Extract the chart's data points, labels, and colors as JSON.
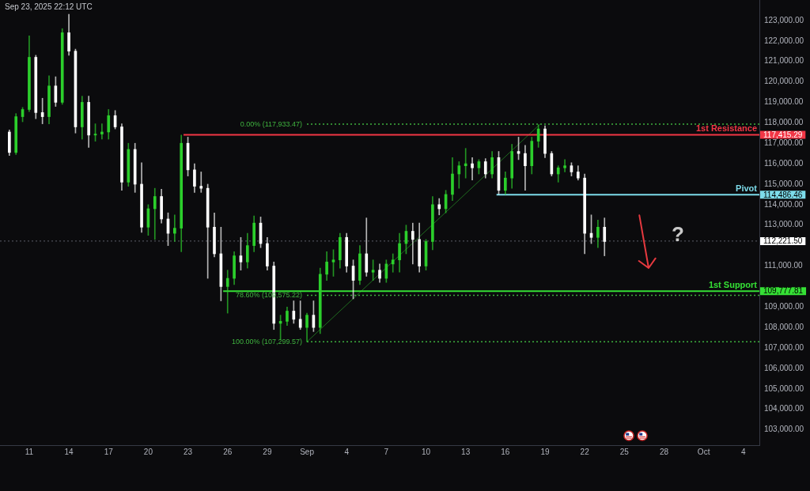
{
  "chart_data": {
    "type": "candlestick",
    "annotations": [
      "Sep 23, 2025 22:12 UTC",
      "?"
    ],
    "x": [
      "2025-08-09T12:00",
      "2025-08-10T00:00",
      "2025-08-10T12:00",
      "2025-08-11T00:00",
      "2025-08-11T12:00",
      "2025-08-12T00:00",
      "2025-08-12T12:00",
      "2025-08-13T00:00",
      "2025-08-13T12:00",
      "2025-08-14T00:00",
      "2025-08-14T12:00",
      "2025-08-15T00:00",
      "2025-08-15T12:00",
      "2025-08-16T00:00",
      "2025-08-16T12:00",
      "2025-08-17T00:00",
      "2025-08-17T12:00",
      "2025-08-18T00:00",
      "2025-08-18T12:00",
      "2025-08-19T00:00",
      "2025-08-19T12:00",
      "2025-08-20T00:00",
      "2025-08-20T12:00",
      "2025-08-21T00:00",
      "2025-08-21T12:00",
      "2025-08-22T00:00",
      "2025-08-22T12:00",
      "2025-08-23T00:00",
      "2025-08-23T12:00",
      "2025-08-24T00:00",
      "2025-08-24T12:00",
      "2025-08-25T00:00",
      "2025-08-25T12:00",
      "2025-08-26T00:00",
      "2025-08-26T12:00",
      "2025-08-27T00:00",
      "2025-08-27T12:00",
      "2025-08-28T00:00",
      "2025-08-28T12:00",
      "2025-08-29T00:00",
      "2025-08-29T12:00",
      "2025-08-30T00:00",
      "2025-08-30T12:00",
      "2025-08-31T00:00",
      "2025-08-31T12:00",
      "2025-09-01T00:00",
      "2025-09-01T12:00",
      "2025-09-02T00:00",
      "2025-09-02T12:00",
      "2025-09-03T00:00",
      "2025-09-03T12:00",
      "2025-09-04T00:00",
      "2025-09-04T12:00",
      "2025-09-05T00:00",
      "2025-09-05T12:00",
      "2025-09-06T00:00",
      "2025-09-06T12:00",
      "2025-09-07T00:00",
      "2025-09-07T12:00",
      "2025-09-08T00:00",
      "2025-09-08T12:00",
      "2025-09-09T00:00",
      "2025-09-09T12:00",
      "2025-09-10T00:00",
      "2025-09-10T12:00",
      "2025-09-11T00:00",
      "2025-09-11T12:00",
      "2025-09-12T00:00",
      "2025-09-12T12:00",
      "2025-09-13T00:00",
      "2025-09-13T12:00",
      "2025-09-14T00:00",
      "2025-09-14T12:00",
      "2025-09-15T00:00",
      "2025-09-15T12:00",
      "2025-09-16T00:00",
      "2025-09-16T12:00",
      "2025-09-17T00:00",
      "2025-09-17T12:00",
      "2025-09-18T00:00",
      "2025-09-18T12:00",
      "2025-09-19T00:00",
      "2025-09-19T12:00",
      "2025-09-20T00:00",
      "2025-09-20T12:00",
      "2025-09-21T00:00",
      "2025-09-21T12:00",
      "2025-09-22T00:00",
      "2025-09-22T12:00",
      "2025-09-23T00:00",
      "2025-09-23T12:00"
    ],
    "ohlc": [
      [
        117550,
        117650,
        116400,
        116550
      ],
      [
        116550,
        118450,
        116450,
        118300
      ],
      [
        118300,
        118750,
        118050,
        118650
      ],
      [
        118650,
        122250,
        118550,
        121200
      ],
      [
        121200,
        121300,
        118200,
        118500
      ],
      [
        118500,
        119200,
        117950,
        118300
      ],
      [
        118300,
        120300,
        117950,
        119800
      ],
      [
        119800,
        120250,
        118800,
        119000
      ],
      [
        119000,
        122600,
        118900,
        122400
      ],
      [
        122400,
        123300,
        121300,
        121500
      ],
      [
        121500,
        121600,
        117500,
        117800
      ],
      [
        117800,
        119300,
        117200,
        119000
      ],
      [
        119000,
        119300,
        116800,
        117400
      ],
      [
        117400,
        117950,
        117100,
        117450
      ],
      [
        117450,
        117950,
        117200,
        117550
      ],
      [
        117550,
        118650,
        117200,
        118350
      ],
      [
        118350,
        118600,
        117700,
        117800
      ],
      [
        117800,
        117950,
        114700,
        115100
      ],
      [
        115100,
        117000,
        114900,
        116700
      ],
      [
        116700,
        117000,
        114600,
        115000
      ],
      [
        115000,
        116050,
        112650,
        112900
      ],
      [
        112900,
        114000,
        112500,
        113800
      ],
      [
        113800,
        114800,
        112300,
        114400
      ],
      [
        114400,
        114750,
        113100,
        113300
      ],
      [
        113300,
        113600,
        112000,
        112600
      ],
      [
        112600,
        113500,
        112200,
        112850
      ],
      [
        112850,
        117400,
        111700,
        117000
      ],
      [
        117000,
        117300,
        115400,
        115700
      ],
      [
        115700,
        116000,
        114600,
        114900
      ],
      [
        114900,
        115600,
        114600,
        114800
      ],
      [
        114800,
        115000,
        110400,
        112900
      ],
      [
        112900,
        113600,
        111450,
        111600
      ],
      [
        111600,
        112900,
        109300,
        110000
      ],
      [
        110000,
        110800,
        108700,
        110400
      ],
      [
        110400,
        111700,
        110100,
        111500
      ],
      [
        111500,
        112400,
        110800,
        111200
      ],
      [
        111200,
        112600,
        110900,
        112000
      ],
      [
        112000,
        113450,
        111700,
        113100
      ],
      [
        113100,
        113400,
        111900,
        112100
      ],
      [
        112100,
        112400,
        110800,
        111000
      ],
      [
        111000,
        111200,
        107900,
        108200
      ],
      [
        108200,
        108600,
        107400,
        108300
      ],
      [
        108300,
        109000,
        108100,
        108800
      ],
      [
        108800,
        109300,
        108200,
        108400
      ],
      [
        108400,
        109300,
        107900,
        108000
      ],
      [
        108000,
        108700,
        107300,
        108600
      ],
      [
        108600,
        109300,
        107800,
        108000
      ],
      [
        108000,
        110900,
        107700,
        110600
      ],
      [
        110600,
        111700,
        110300,
        111200
      ],
      [
        111200,
        111800,
        110500,
        111300
      ],
      [
        111300,
        112600,
        110900,
        112400
      ],
      [
        112400,
        112600,
        110700,
        111000
      ],
      [
        111000,
        111300,
        109400,
        110300
      ],
      [
        110300,
        112000,
        110100,
        111600
      ],
      [
        111600,
        113350,
        110500,
        110700
      ],
      [
        110700,
        111300,
        110300,
        110800
      ],
      [
        110800,
        111100,
        110200,
        110400
      ],
      [
        110400,
        111300,
        110200,
        111100
      ],
      [
        111100,
        111600,
        110700,
        111300
      ],
      [
        111300,
        112600,
        110700,
        112100
      ],
      [
        112100,
        113000,
        111600,
        112700
      ],
      [
        112700,
        113100,
        111100,
        112300
      ],
      [
        112300,
        113100,
        110700,
        111000
      ],
      [
        111000,
        112300,
        110800,
        112200
      ],
      [
        112200,
        114400,
        111800,
        114000
      ],
      [
        114000,
        114300,
        113500,
        113800
      ],
      [
        113800,
        114700,
        113600,
        114500
      ],
      [
        114500,
        116300,
        114200,
        115500
      ],
      [
        115500,
        116100,
        114800,
        115900
      ],
      [
        115900,
        116750,
        115300,
        116000
      ],
      [
        116000,
        116300,
        115200,
        115800
      ],
      [
        115800,
        116200,
        115500,
        116100
      ],
      [
        116100,
        116250,
        115300,
        115500
      ],
      [
        115500,
        116600,
        115300,
        116300
      ],
      [
        116300,
        116600,
        114500,
        114700
      ],
      [
        114700,
        115600,
        114500,
        115300
      ],
      [
        115300,
        116950,
        114800,
        116600
      ],
      [
        116600,
        117300,
        116200,
        116500
      ],
      [
        116500,
        116900,
        114700,
        115900
      ],
      [
        115900,
        117300,
        115500,
        117100
      ],
      [
        117100,
        117900,
        116800,
        117700
      ],
      [
        117700,
        117850,
        116300,
        116500
      ],
      [
        116500,
        116600,
        115400,
        115500
      ],
      [
        115500,
        115900,
        115100,
        115800
      ],
      [
        115800,
        116200,
        115600,
        115900
      ],
      [
        115900,
        116050,
        115400,
        115600
      ],
      [
        115600,
        115900,
        115200,
        115300
      ],
      [
        115300,
        115500,
        111600,
        112600
      ],
      [
        112600,
        113500,
        112100,
        112400
      ],
      [
        112400,
        113250,
        111900,
        112900
      ],
      [
        112900,
        113350,
        111500,
        112200
      ]
    ],
    "colors": [
      "#ffffff",
      "#2ccf2c",
      "#2ccf2c",
      "#2ccf2c",
      "#ffffff",
      "#ffffff",
      "#2ccf2c",
      "#ffffff",
      "#2ccf2c",
      "#ffffff",
      "#ffffff",
      "#2ccf2c",
      "#ffffff",
      "#2ccf2c",
      "#2ccf2c",
      "#2ccf2c",
      "#ffffff",
      "#ffffff",
      "#2ccf2c",
      "#ffffff",
      "#ffffff",
      "#2ccf2c",
      "#2ccf2c",
      "#ffffff",
      "#ffffff",
      "#2ccf2c",
      "#2ccf2c",
      "#ffffff",
      "#ffffff",
      "#ffffff",
      "#ffffff",
      "#ffffff",
      "#ffffff",
      "#2ccf2c",
      "#2ccf2c",
      "#ffffff",
      "#2ccf2c",
      "#2ccf2c",
      "#ffffff",
      "#ffffff",
      "#ffffff",
      "#2ccf2c",
      "#2ccf2c",
      "#ffffff",
      "#ffffff",
      "#2ccf2c",
      "#ffffff",
      "#2ccf2c",
      "#2ccf2c",
      "#2ccf2c",
      "#2ccf2c",
      "#ffffff",
      "#ffffff",
      "#2ccf2c",
      "#ffffff",
      "#2ccf2c",
      "#ffffff",
      "#2ccf2c",
      "#2ccf2c",
      "#2ccf2c",
      "#2ccf2c",
      "#ffffff",
      "#ffffff",
      "#2ccf2c",
      "#2ccf2c",
      "#ffffff",
      "#2ccf2c",
      "#2ccf2c",
      "#2ccf2c",
      "#2ccf2c",
      "#ffffff",
      "#2ccf2c",
      "#ffffff",
      "#2ccf2c",
      "#ffffff",
      "#2ccf2c",
      "#2ccf2c",
      "#ffffff",
      "#ffffff",
      "#2ccf2c",
      "#2ccf2c",
      "#ffffff",
      "#ffffff",
      "#2ccf2c",
      "#2ccf2c",
      "#ffffff",
      "#ffffff",
      "#ffffff",
      "#ffffff",
      "#2ccf2c",
      "#ffffff"
    ],
    "series": [
      {
        "type": "line",
        "name": "1st Resistance",
        "color": "#f23645",
        "x": [
          "2025-08-22T16:00",
          "2025-10-05T05:00"
        ],
        "values": [
          117415.29,
          117415.29
        ],
        "value_labels": [
          null,
          "117,415.29"
        ]
      },
      {
        "type": "line",
        "name": "Pivot",
        "color": "#7ddcea",
        "x": [
          "2025-09-15T08:00",
          "2025-10-05T05:00"
        ],
        "values": [
          114486.46,
          114486.46
        ],
        "value_labels": [
          null,
          "114,486.46"
        ]
      },
      {
        "type": "line",
        "name": "1st Support",
        "color": "#35e035",
        "x": [
          "2025-08-25T16:00",
          "2025-10-05T05:00"
        ],
        "values": [
          109777.81,
          109777.81
        ],
        "value_labels": [
          null,
          "109,777.81"
        ]
      },
      {
        "type": "line",
        "name": "0.00% (117,933.47)",
        "color": "#3fb23f",
        "line_style": "dotted",
        "x": [
          "2025-09-01T00:00",
          "2025-10-05T05:00"
        ],
        "values": [
          117933.47,
          117933.47
        ]
      },
      {
        "type": "line",
        "name": "78.60% (109,575.22)",
        "color": "#3fb23f",
        "line_style": "dotted",
        "x": [
          "2025-09-01T00:00",
          "2025-10-05T05:00"
        ],
        "values": [
          109575.22,
          109575.22
        ]
      },
      {
        "type": "line",
        "name": "100.00% (107,299.57)",
        "color": "#3fb23f",
        "line_style": "dotted",
        "x": [
          "2025-09-01T00:00",
          "2025-10-05T05:00"
        ],
        "values": [
          107299.57,
          107299.57
        ]
      },
      {
        "type": "line",
        "color": "#1f6b1f",
        "x": [
          "2025-09-01T00:00",
          "2025-09-18T15:00"
        ],
        "values": [
          107299.57,
          117933.47
        ]
      }
    ],
    "ref_lines": [
      {
        "axis": "y",
        "value": 112221.5,
        "label": "112,221.50",
        "color": "#5d606b",
        "line_style": "dotted"
      }
    ],
    "xlim": [
      "2025-08-08T19:00",
      "2025-10-05T05:00"
    ],
    "xticks": [
      {
        "value": "2025-08-11",
        "label": "11"
      },
      {
        "value": "2025-08-14",
        "label": "14"
      },
      {
        "value": "2025-08-17",
        "label": "17"
      },
      {
        "value": "2025-08-20",
        "label": "20"
      },
      {
        "value": "2025-08-23",
        "label": "23"
      },
      {
        "value": "2025-08-26",
        "label": "26"
      },
      {
        "value": "2025-08-29",
        "label": "29"
      },
      {
        "value": "2025-09-01",
        "label": "Sep"
      },
      {
        "value": "2025-09-04",
        "label": "4"
      },
      {
        "value": "2025-09-07",
        "label": "7"
      },
      {
        "value": "2025-09-10",
        "label": "10"
      },
      {
        "value": "2025-09-13",
        "label": "13"
      },
      {
        "value": "2025-09-16",
        "label": "16"
      },
      {
        "value": "2025-09-19",
        "label": "19"
      },
      {
        "value": "2025-09-22",
        "label": "22"
      },
      {
        "value": "2025-09-25",
        "label": "25"
      },
      {
        "value": "2025-09-28",
        "label": "28"
      },
      {
        "value": "2025-10-01",
        "label": "Oct"
      },
      {
        "value": "2025-10-04",
        "label": "4"
      }
    ],
    "ylim": [
      102250,
      124000
    ],
    "yticks": [
      {
        "value": 103000,
        "label": "103,000.00"
      },
      {
        "value": 104000,
        "label": "104,000.00"
      },
      {
        "value": 105000,
        "label": "105,000.00"
      },
      {
        "value": 106000,
        "label": "106,000.00"
      },
      {
        "value": 107000,
        "label": "107,000.00"
      },
      {
        "value": 108000,
        "label": "108,000.00"
      },
      {
        "value": 109000,
        "label": "109,000.00"
      },
      {
        "value": 111000,
        "label": "111,000.00"
      },
      {
        "value": 113000,
        "label": "113,000.00"
      },
      {
        "value": 114000,
        "label": "114,000.00"
      },
      {
        "value": 115000,
        "label": "115,000.00"
      },
      {
        "value": 116000,
        "label": "116,000.00"
      },
      {
        "value": 117000,
        "label": "117,000.00"
      },
      {
        "value": 118000,
        "label": "118,000.00"
      },
      {
        "value": 119000,
        "label": "119,000.00"
      },
      {
        "value": 120000,
        "label": "120,000.00"
      },
      {
        "value": 121000,
        "label": "121,000.00"
      },
      {
        "value": 122000,
        "label": "122,000.00"
      },
      {
        "value": 123000,
        "label": "123,000.00"
      }
    ]
  }
}
